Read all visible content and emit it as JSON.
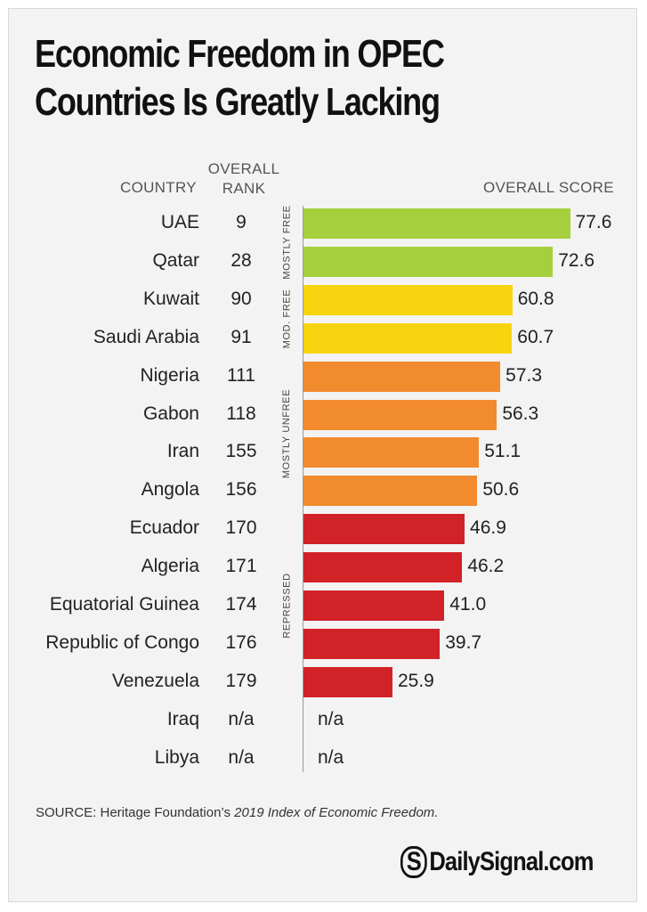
{
  "title_line1": "Economic Freedom in OPEC",
  "title_line2": "Countries Is Greatly Lacking",
  "headers": {
    "country": "COUNTRY",
    "rank_line1": "OVERALL",
    "rank_line2": "RANK",
    "score": "OVERALL SCORE"
  },
  "categories_labels": [
    "MOSTLY FREE",
    "MOD. FREE",
    "MOSTLY UNFREE",
    "REPRESSED"
  ],
  "colors": {
    "mostly_free": "#a6cf3d",
    "mod_free": "#f7d40f",
    "mostly_unfree": "#f28a2e",
    "repressed": "#d12228"
  },
  "source_prefix": "SOURCE: Heritage Foundation’s ",
  "source_italic": "2019 Index of Economic Freedom.",
  "logo_mark": "S",
  "logo_text": "DailySignal.com",
  "chart_data": {
    "type": "bar",
    "title": "Economic Freedom in OPEC Countries Is Greatly Lacking",
    "xlabel": "OVERALL SCORE",
    "orientation": "horizontal",
    "xlim": [
      0,
      100
    ],
    "rows": [
      {
        "country": "UAE",
        "rank": "9",
        "score": 77.6,
        "label": "77.6",
        "category": "mostly_free"
      },
      {
        "country": "Qatar",
        "rank": "28",
        "score": 72.6,
        "label": "72.6",
        "category": "mostly_free"
      },
      {
        "country": "Kuwait",
        "rank": "90",
        "score": 60.8,
        "label": "60.8",
        "category": "mod_free"
      },
      {
        "country": "Saudi Arabia",
        "rank": "91",
        "score": 60.7,
        "label": "60.7",
        "category": "mod_free"
      },
      {
        "country": "Nigeria",
        "rank": "111",
        "score": 57.3,
        "label": "57.3",
        "category": "mostly_unfree"
      },
      {
        "country": "Gabon",
        "rank": "118",
        "score": 56.3,
        "label": "56.3",
        "category": "mostly_unfree"
      },
      {
        "country": "Iran",
        "rank": "155",
        "score": 51.1,
        "label": "51.1",
        "category": "mostly_unfree"
      },
      {
        "country": "Angola",
        "rank": "156",
        "score": 50.6,
        "label": "50.6",
        "category": "mostly_unfree"
      },
      {
        "country": "Ecuador",
        "rank": "170",
        "score": 46.9,
        "label": "46.9",
        "category": "repressed"
      },
      {
        "country": "Algeria",
        "rank": "171",
        "score": 46.2,
        "label": "46.2",
        "category": "repressed"
      },
      {
        "country": "Equatorial Guinea",
        "rank": "174",
        "score": 41.0,
        "label": "41.0",
        "category": "repressed"
      },
      {
        "country": "Republic of Congo",
        "rank": "176",
        "score": 39.7,
        "label": "39.7",
        "category": "repressed"
      },
      {
        "country": "Venezuela",
        "rank": "179",
        "score": 25.9,
        "label": "25.9",
        "category": "repressed"
      },
      {
        "country": "Iraq",
        "rank": "n/a",
        "score": null,
        "label": "n/a",
        "category": null
      },
      {
        "country": "Libya",
        "rank": "n/a",
        "score": null,
        "label": "n/a",
        "category": null
      }
    ]
  }
}
